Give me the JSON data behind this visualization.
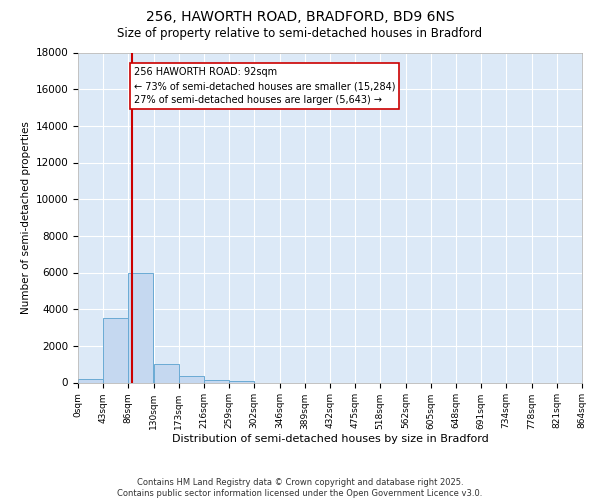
{
  "title_line1": "256, HAWORTH ROAD, BRADFORD, BD9 6NS",
  "title_line2": "Size of property relative to semi-detached houses in Bradford",
  "xlabel": "Distribution of semi-detached houses by size in Bradford",
  "ylabel": "Number of semi-detached properties",
  "bin_labels": [
    "0sqm",
    "43sqm",
    "86sqm",
    "130sqm",
    "173sqm",
    "216sqm",
    "259sqm",
    "302sqm",
    "346sqm",
    "389sqm",
    "432sqm",
    "475sqm",
    "518sqm",
    "562sqm",
    "605sqm",
    "648sqm",
    "691sqm",
    "734sqm",
    "778sqm",
    "821sqm",
    "864sqm"
  ],
  "bin_edges": [
    0,
    43,
    86,
    130,
    173,
    216,
    259,
    302,
    346,
    389,
    432,
    475,
    518,
    562,
    605,
    648,
    691,
    734,
    778,
    821,
    864
  ],
  "bar_values": [
    200,
    3500,
    6000,
    1000,
    350,
    150,
    70,
    0,
    0,
    0,
    0,
    0,
    0,
    0,
    0,
    0,
    0,
    0,
    0,
    0
  ],
  "bar_color": "#c5d8f0",
  "bar_edge_color": "#6aaad4",
  "plot_bg_color": "#dce9f7",
  "fig_bg_color": "#ffffff",
  "grid_color": "#ffffff",
  "property_value": 92,
  "vline_color": "#cc0000",
  "annotation_line1": "256 HAWORTH ROAD: 92sqm",
  "annotation_line2": "← 73% of semi-detached houses are smaller (15,284)",
  "annotation_line3": "27% of semi-detached houses are larger (5,643) →",
  "annotation_box_facecolor": "#ffffff",
  "annotation_box_edgecolor": "#cc0000",
  "footer_line1": "Contains HM Land Registry data © Crown copyright and database right 2025.",
  "footer_line2": "Contains public sector information licensed under the Open Government Licence v3.0.",
  "ylim": [
    0,
    18000
  ],
  "yticks": [
    0,
    2000,
    4000,
    6000,
    8000,
    10000,
    12000,
    14000,
    16000,
    18000
  ],
  "figsize": [
    6.0,
    5.0
  ],
  "dpi": 100
}
